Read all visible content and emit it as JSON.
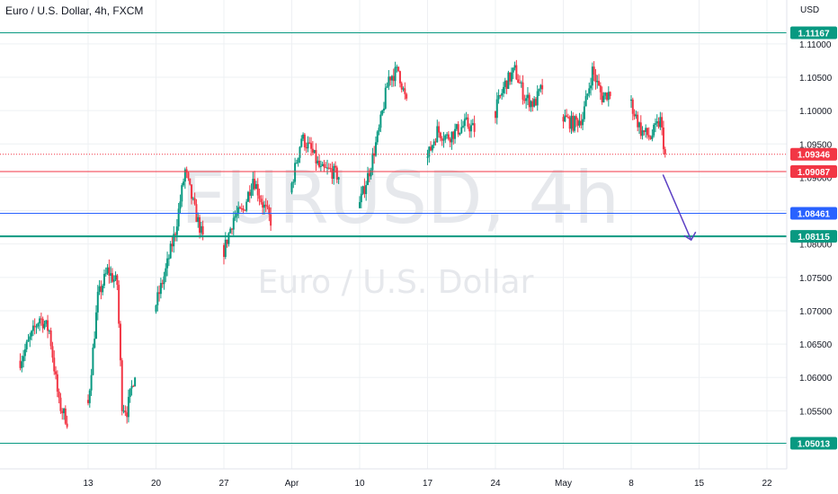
{
  "header": {
    "title": "Euro / U.S. Dollar, 4h, FXCM",
    "currency": "USD"
  },
  "watermark": {
    "symbol": "EURUSD, 4h",
    "name": "Euro / U.S. Dollar"
  },
  "chart_data": {
    "type": "candlestick",
    "symbol": "EURUSD",
    "timeframe": "4h",
    "ylim": [
      1.0465,
      1.1195
    ],
    "y_ticks": [
      "1.11000",
      "1.10500",
      "1.10000",
      "1.09500",
      "1.09000",
      "1.08500",
      "1.08000",
      "1.07500",
      "1.07000",
      "1.06500",
      "1.06000",
      "1.05500"
    ],
    "x_ticks": [
      "13",
      "20",
      "27",
      "Apr",
      "10",
      "17",
      "24",
      "May",
      "8",
      "15",
      "22"
    ],
    "x_tick_dates": [
      "2023-03-13",
      "2023-03-20",
      "2023-03-27",
      "2023-04-03",
      "2023-04-10",
      "2023-04-17",
      "2023-04-24",
      "2023-05-01",
      "2023-05-08",
      "2023-05-15",
      "2023-05-22"
    ],
    "current_price": {
      "value": 1.09346,
      "label": "1.09346",
      "color": "#f23645"
    },
    "horizontal_levels": [
      {
        "value": 1.11167,
        "label": "1.11167",
        "color": "#089981"
      },
      {
        "value": 1.09087,
        "label": "1.09087",
        "color": "#f23645"
      },
      {
        "value": 1.08461,
        "label": "1.08461",
        "color": "#2962ff"
      },
      {
        "value": 1.08115,
        "label": "1.08115",
        "color": "#089981"
      },
      {
        "value": 1.05013,
        "label": "1.05013",
        "color": "#089981"
      }
    ],
    "projection_arrow": {
      "from": [
        "2023-05-11",
        1.0904
      ],
      "to": [
        "2023-05-14",
        1.0806
      ],
      "color": "#5b3fc4"
    },
    "colors": {
      "up": "#089981",
      "down": "#f23645"
    },
    "price_path": [
      [
        "2023-03-06",
        1.0625
      ],
      [
        "2023-03-08",
        1.069
      ],
      [
        "2023-03-09",
        1.067
      ],
      [
        "2023-03-10",
        1.056
      ],
      [
        "2023-03-11",
        1.053
      ],
      [
        "2023-03-13",
        1.056
      ],
      [
        "2023-03-14",
        1.072
      ],
      [
        "2023-03-15",
        1.076
      ],
      [
        "2023-03-16",
        1.074
      ],
      [
        "2023-03-16.5",
        1.056
      ],
      [
        "2023-03-17",
        1.055
      ],
      [
        "2023-03-18",
        1.062
      ],
      [
        "2023-03-20",
        1.071
      ],
      [
        "2023-03-21",
        1.076
      ],
      [
        "2023-03-22",
        1.082
      ],
      [
        "2023-03-23",
        1.091
      ],
      [
        "2023-03-24",
        1.085
      ],
      [
        "2023-03-25",
        1.08
      ],
      [
        "2023-03-26",
        1.078
      ],
      [
        "2023-03-27",
        1.079
      ],
      [
        "2023-03-28",
        1.084
      ],
      [
        "2023-03-29",
        1.085
      ],
      [
        "2023-03-30",
        1.09
      ],
      [
        "2023-03-31",
        1.086
      ],
      [
        "2023-04-01",
        1.083
      ],
      [
        "2023-04-02",
        1.08
      ],
      [
        "2023-04-03",
        1.089
      ],
      [
        "2023-04-04",
        1.096
      ],
      [
        "2023-04-05",
        1.094
      ],
      [
        "2023-04-06",
        1.091
      ],
      [
        "2023-04-07",
        1.091
      ],
      [
        "2023-04-08",
        1.09
      ],
      [
        "2023-04-09",
        1.087
      ],
      [
        "2023-04-10",
        1.086
      ],
      [
        "2023-04-11",
        1.091
      ],
      [
        "2023-04-12",
        1.097
      ],
      [
        "2023-04-13",
        1.105
      ],
      [
        "2023-04-14",
        1.106
      ],
      [
        "2023-04-15",
        1.1
      ],
      [
        "2023-04-16",
        1.099
      ],
      [
        "2023-04-17",
        1.093
      ],
      [
        "2023-04-18",
        1.097
      ],
      [
        "2023-04-19",
        1.096
      ],
      [
        "2023-04-20",
        1.097
      ],
      [
        "2023-04-21",
        1.098
      ],
      [
        "2023-04-22",
        1.097
      ],
      [
        "2023-04-24",
        1.1
      ],
      [
        "2023-04-25",
        1.104
      ],
      [
        "2023-04-26",
        1.106
      ],
      [
        "2023-04-27",
        1.102
      ],
      [
        "2023-04-28",
        1.101
      ],
      [
        "2023-04-29",
        1.104
      ],
      [
        "2023-04-30",
        1.101
      ],
      [
        "2023-05-01",
        1.099
      ],
      [
        "2023-05-02",
        1.098
      ],
      [
        "2023-05-03",
        1.099
      ],
      [
        "2023-05-04",
        1.106
      ],
      [
        "2023-05-05",
        1.102
      ],
      [
        "2023-05-06",
        1.103
      ],
      [
        "2023-05-07",
        1.104
      ],
      [
        "2023-05-08",
        1.101
      ],
      [
        "2023-05-09",
        1.097
      ],
      [
        "2023-05-10",
        1.096
      ],
      [
        "2023-05-11",
        1.0985
      ],
      [
        "2023-05-11.5",
        1.0935
      ]
    ]
  }
}
